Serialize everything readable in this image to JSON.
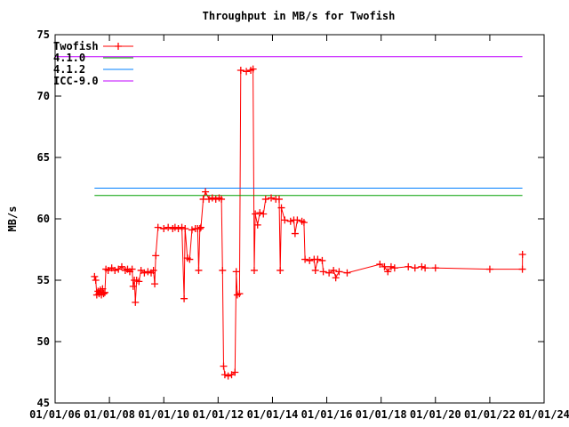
{
  "chart_data": {
    "type": "line",
    "title": "Throughput in MB/s for Twofish",
    "ylabel": "MB/s",
    "xlabel": "",
    "ylim": [
      45,
      75
    ],
    "xlim": [
      "2006-01-01",
      "2024-01-01"
    ],
    "yticks": [
      45,
      50,
      55,
      60,
      65,
      70,
      75
    ],
    "xtick_labels": [
      "01/01/06",
      "01/01/08",
      "01/01/10",
      "01/01/12",
      "01/01/14",
      "01/01/16",
      "01/01/18",
      "01/01/20",
      "01/01/22",
      "01/01/24"
    ],
    "xtick_dates": [
      "2006-01-01",
      "2008-01-01",
      "2010-01-01",
      "2012-01-01",
      "2014-01-01",
      "2016-01-01",
      "2018-01-01",
      "2020-01-01",
      "2022-01-01",
      "2024-01-01"
    ],
    "grid": false,
    "legend_position": "top-left",
    "series": [
      {
        "name": "Twofish",
        "color": "#ff0000",
        "marker": "plus",
        "points": [
          [
            "2007-06-15",
            55.3
          ],
          [
            "2007-07-01",
            55.0
          ],
          [
            "2007-07-15",
            53.8
          ],
          [
            "2007-08-01",
            54.1
          ],
          [
            "2007-08-15",
            53.9
          ],
          [
            "2007-09-01",
            54.2
          ],
          [
            "2007-09-15",
            53.8
          ],
          [
            "2007-10-01",
            54.3
          ],
          [
            "2007-10-15",
            53.9
          ],
          [
            "2007-11-01",
            54.0
          ],
          [
            "2007-11-15",
            55.9
          ],
          [
            "2007-12-15",
            55.8
          ],
          [
            "2008-02-01",
            56.0
          ],
          [
            "2008-03-15",
            55.8
          ],
          [
            "2008-05-01",
            55.9
          ],
          [
            "2008-06-15",
            56.1
          ],
          [
            "2008-08-01",
            55.8
          ],
          [
            "2008-09-01",
            55.9
          ],
          [
            "2008-10-01",
            55.7
          ],
          [
            "2008-11-01",
            55.9
          ],
          [
            "2008-11-15",
            54.5
          ],
          [
            "2008-12-01",
            55.0
          ],
          [
            "2008-12-15",
            53.2
          ],
          [
            "2009-01-01",
            55.0
          ],
          [
            "2009-02-01",
            54.9
          ],
          [
            "2009-03-01",
            55.8
          ],
          [
            "2009-04-15",
            55.6
          ],
          [
            "2009-06-01",
            55.7
          ],
          [
            "2009-07-15",
            55.6
          ],
          [
            "2009-08-15",
            55.8
          ],
          [
            "2009-09-01",
            54.7
          ],
          [
            "2009-09-15",
            57.0
          ],
          [
            "2009-10-15",
            59.3
          ],
          [
            "2010-01-01",
            59.2
          ],
          [
            "2010-03-01",
            59.3
          ],
          [
            "2010-05-01",
            59.2
          ],
          [
            "2010-06-01",
            59.3
          ],
          [
            "2010-07-15",
            59.2
          ],
          [
            "2010-09-01",
            59.3
          ],
          [
            "2010-10-01",
            53.5
          ],
          [
            "2010-10-15",
            59.2
          ],
          [
            "2010-11-15",
            56.8
          ],
          [
            "2010-12-15",
            56.7
          ],
          [
            "2011-01-15",
            59.1
          ],
          [
            "2011-03-01",
            59.2
          ],
          [
            "2011-04-01",
            59.2
          ],
          [
            "2011-04-15",
            55.8
          ],
          [
            "2011-05-01",
            59.2
          ],
          [
            "2011-05-15",
            59.3
          ],
          [
            "2011-06-15",
            61.6
          ],
          [
            "2011-07-15",
            62.2
          ],
          [
            "2011-09-01",
            61.6
          ],
          [
            "2011-10-15",
            61.7
          ],
          [
            "2011-12-01",
            61.6
          ],
          [
            "2012-01-15",
            61.7
          ],
          [
            "2012-02-15",
            61.6
          ],
          [
            "2012-03-01",
            55.8
          ],
          [
            "2012-03-15",
            48.0
          ],
          [
            "2012-04-01",
            47.3
          ],
          [
            "2012-05-15",
            47.2
          ],
          [
            "2012-07-01",
            47.3
          ],
          [
            "2012-08-15",
            47.5
          ],
          [
            "2012-09-01",
            55.7
          ],
          [
            "2012-09-15",
            53.8
          ],
          [
            "2012-10-15",
            53.9
          ],
          [
            "2012-11-01",
            72.1
          ],
          [
            "2013-01-15",
            72.0
          ],
          [
            "2013-03-15",
            72.1
          ],
          [
            "2013-04-15",
            72.2
          ],
          [
            "2013-05-01",
            55.8
          ],
          [
            "2013-05-15",
            60.4
          ],
          [
            "2013-06-15",
            59.5
          ],
          [
            "2013-07-15",
            60.5
          ],
          [
            "2013-09-01",
            60.4
          ],
          [
            "2013-10-01",
            61.6
          ],
          [
            "2013-12-15",
            61.7
          ],
          [
            "2014-02-15",
            61.6
          ],
          [
            "2014-04-01",
            61.6
          ],
          [
            "2014-04-15",
            55.8
          ],
          [
            "2014-05-01",
            60.9
          ],
          [
            "2014-06-15",
            59.9
          ],
          [
            "2014-09-01",
            59.8
          ],
          [
            "2014-10-15",
            59.9
          ],
          [
            "2014-11-01",
            58.8
          ],
          [
            "2014-12-01",
            59.9
          ],
          [
            "2015-02-01",
            59.8
          ],
          [
            "2015-03-01",
            59.7
          ],
          [
            "2015-03-15",
            56.7
          ],
          [
            "2015-05-15",
            56.6
          ],
          [
            "2015-07-15",
            56.7
          ],
          [
            "2015-08-01",
            55.8
          ],
          [
            "2015-09-01",
            56.7
          ],
          [
            "2015-11-01",
            56.6
          ],
          [
            "2015-11-15",
            55.7
          ],
          [
            "2016-02-01",
            55.6
          ],
          [
            "2016-04-01",
            55.8
          ],
          [
            "2016-05-01",
            55.2
          ],
          [
            "2016-06-15",
            55.7
          ],
          [
            "2016-10-01",
            55.6
          ],
          [
            "2017-12-15",
            56.3
          ],
          [
            "2018-02-15",
            56.1
          ],
          [
            "2018-04-01",
            55.7
          ],
          [
            "2018-05-15",
            56.1
          ],
          [
            "2018-07-01",
            56.0
          ],
          [
            "2019-01-01",
            56.1
          ],
          [
            "2019-04-01",
            56.0
          ],
          [
            "2019-07-01",
            56.1
          ],
          [
            "2019-08-15",
            56.0
          ],
          [
            "2020-01-01",
            56.0
          ],
          [
            "2022-01-01",
            55.9
          ],
          [
            "2023-03-15",
            55.9
          ],
          [
            "2023-03-16",
            57.1
          ]
        ]
      },
      {
        "name": "4.1.0",
        "color": "#00a000",
        "marker": "none",
        "points": [
          [
            "2007-06-15",
            61.9
          ],
          [
            "2023-03-15",
            61.9
          ]
        ]
      },
      {
        "name": "4.1.2",
        "color": "#0080ff",
        "marker": "none",
        "points": [
          [
            "2007-06-15",
            62.5
          ],
          [
            "2023-03-15",
            62.5
          ]
        ]
      },
      {
        "name": "ICC-9.0",
        "color": "#c000ff",
        "marker": "none",
        "points": [
          [
            "2006-01-01",
            73.2
          ],
          [
            "2023-03-15",
            73.2
          ]
        ]
      }
    ]
  }
}
